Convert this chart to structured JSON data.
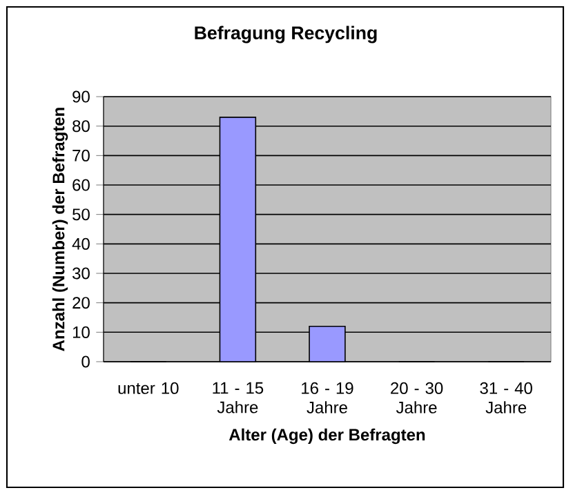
{
  "chart_data": {
    "type": "bar",
    "title": "Befragung Recycling",
    "xlabel": "Alter (Age)  der Befragten",
    "ylabel": "Anzahl (Number) der Befragten",
    "categories": [
      "unter 10",
      "11 - 15 Jahre",
      "16 - 19 Jahre",
      "20 - 30 Jahre",
      "31 - 40 Jahre"
    ],
    "values": [
      0,
      83,
      12,
      0,
      0
    ],
    "color": "#9999ff",
    "ylim": [
      0,
      90
    ],
    "yticks": [
      0,
      10,
      20,
      30,
      40,
      50,
      60,
      70,
      80,
      90
    ],
    "grid": "y"
  }
}
